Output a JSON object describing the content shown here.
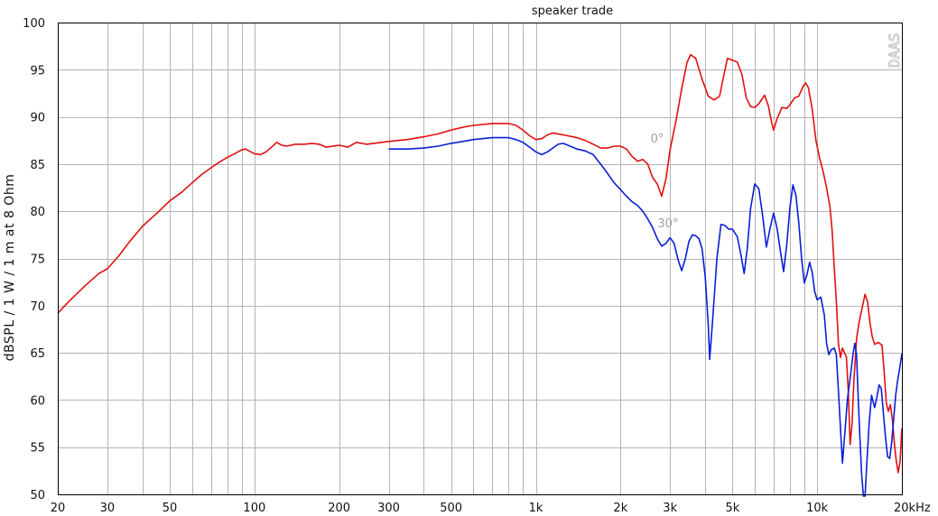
{
  "chart_data": {
    "type": "line",
    "title": "speaker trade",
    "ylabel": "dBSPL / 1 W / 1 m at 8 Ohm",
    "xlabel": "",
    "x_scale": "log",
    "xlim": [
      20,
      20000
    ],
    "ylim": [
      50,
      100
    ],
    "grid": true,
    "x_ticks": [
      {
        "v": 20,
        "label": "20"
      },
      {
        "v": 30,
        "label": "30"
      },
      {
        "v": 50,
        "label": "50"
      },
      {
        "v": 100,
        "label": "100"
      },
      {
        "v": 200,
        "label": "200"
      },
      {
        "v": 300,
        "label": "300"
      },
      {
        "v": 500,
        "label": "500"
      },
      {
        "v": 1000,
        "label": "1k"
      },
      {
        "v": 2000,
        "label": "2k"
      },
      {
        "v": 3000,
        "label": "3k"
      },
      {
        "v": 5000,
        "label": "5k"
      },
      {
        "v": 10000,
        "label": "10k"
      },
      {
        "v": 20000,
        "label": "20kHz"
      }
    ],
    "y_ticks": [
      50,
      55,
      60,
      65,
      70,
      75,
      80,
      85,
      90,
      95,
      100
    ],
    "annotations": [
      {
        "text": "0°",
        "x": 2700,
        "y": 87.3
      },
      {
        "text": "30°",
        "x": 2950,
        "y": 78.3
      }
    ],
    "watermark": "DAAS",
    "series": [
      {
        "name": "0°",
        "color": "#e01010",
        "points": [
          [
            20,
            69.2
          ],
          [
            22,
            70.5
          ],
          [
            25,
            72.1
          ],
          [
            28,
            73.4
          ],
          [
            30,
            73.9
          ],
          [
            33,
            75.3
          ],
          [
            36,
            76.8
          ],
          [
            40,
            78.4
          ],
          [
            45,
            79.8
          ],
          [
            50,
            81.1
          ],
          [
            55,
            82.0
          ],
          [
            60,
            83.0
          ],
          [
            65,
            83.9
          ],
          [
            70,
            84.6
          ],
          [
            75,
            85.2
          ],
          [
            80,
            85.7
          ],
          [
            85,
            86.1
          ],
          [
            90,
            86.5
          ],
          [
            93,
            86.6
          ],
          [
            100,
            86.1
          ],
          [
            105,
            86.0
          ],
          [
            110,
            86.3
          ],
          [
            115,
            86.8
          ],
          [
            120,
            87.3
          ],
          [
            125,
            87.0
          ],
          [
            130,
            86.9
          ],
          [
            140,
            87.1
          ],
          [
            150,
            87.1
          ],
          [
            160,
            87.2
          ],
          [
            170,
            87.1
          ],
          [
            180,
            86.8
          ],
          [
            200,
            87.0
          ],
          [
            215,
            86.8
          ],
          [
            230,
            87.3
          ],
          [
            250,
            87.1
          ],
          [
            300,
            87.4
          ],
          [
            350,
            87.6
          ],
          [
            400,
            87.9
          ],
          [
            450,
            88.2
          ],
          [
            500,
            88.6
          ],
          [
            550,
            88.9
          ],
          [
            600,
            89.1
          ],
          [
            700,
            89.3
          ],
          [
            800,
            89.3
          ],
          [
            850,
            89.1
          ],
          [
            900,
            88.6
          ],
          [
            950,
            88.0
          ],
          [
            1000,
            87.6
          ],
          [
            1050,
            87.7
          ],
          [
            1100,
            88.1
          ],
          [
            1150,
            88.3
          ],
          [
            1200,
            88.2
          ],
          [
            1300,
            88.0
          ],
          [
            1400,
            87.8
          ],
          [
            1500,
            87.5
          ],
          [
            1600,
            87.1
          ],
          [
            1700,
            86.7
          ],
          [
            1800,
            86.7
          ],
          [
            1900,
            86.9
          ],
          [
            2000,
            86.9
          ],
          [
            2100,
            86.6
          ],
          [
            2200,
            85.8
          ],
          [
            2300,
            85.3
          ],
          [
            2400,
            85.5
          ],
          [
            2500,
            85.0
          ],
          [
            2600,
            83.6
          ],
          [
            2700,
            82.9
          ],
          [
            2800,
            81.6
          ],
          [
            2900,
            83.4
          ],
          [
            3000,
            86.5
          ],
          [
            3150,
            89.6
          ],
          [
            3300,
            93.0
          ],
          [
            3450,
            95.8
          ],
          [
            3550,
            96.6
          ],
          [
            3700,
            96.2
          ],
          [
            3900,
            94.0
          ],
          [
            4100,
            92.2
          ],
          [
            4300,
            91.8
          ],
          [
            4500,
            92.2
          ],
          [
            4650,
            94.3
          ],
          [
            4800,
            96.2
          ],
          [
            5000,
            96.0
          ],
          [
            5200,
            95.8
          ],
          [
            5400,
            94.5
          ],
          [
            5600,
            92.0
          ],
          [
            5800,
            91.1
          ],
          [
            6000,
            91.0
          ],
          [
            6200,
            91.4
          ],
          [
            6500,
            92.3
          ],
          [
            6700,
            91.2
          ],
          [
            6900,
            89.3
          ],
          [
            7000,
            88.6
          ],
          [
            7200,
            89.8
          ],
          [
            7500,
            91.0
          ],
          [
            7800,
            90.9
          ],
          [
            8000,
            91.3
          ],
          [
            8300,
            92.0
          ],
          [
            8600,
            92.2
          ],
          [
            8900,
            93.2
          ],
          [
            9100,
            93.6
          ],
          [
            9300,
            93.1
          ],
          [
            9600,
            90.8
          ],
          [
            9900,
            87.5
          ],
          [
            10200,
            85.6
          ],
          [
            10500,
            84.2
          ],
          [
            10800,
            82.5
          ],
          [
            11100,
            80.5
          ],
          [
            11300,
            78.0
          ],
          [
            11500,
            74.0
          ],
          [
            11700,
            70.5
          ],
          [
            11900,
            66.0
          ],
          [
            12100,
            64.5
          ],
          [
            12300,
            65.5
          ],
          [
            12500,
            65.0
          ],
          [
            12700,
            64.6
          ],
          [
            12900,
            61.0
          ],
          [
            13100,
            55.3
          ],
          [
            13300,
            57.5
          ],
          [
            13500,
            62.0
          ],
          [
            13800,
            66.5
          ],
          [
            14100,
            68.3
          ],
          [
            14500,
            70.0
          ],
          [
            14800,
            71.2
          ],
          [
            15100,
            70.4
          ],
          [
            15400,
            68.2
          ],
          [
            15700,
            66.7
          ],
          [
            16000,
            65.9
          ],
          [
            16500,
            66.1
          ],
          [
            17000,
            65.8
          ],
          [
            17300,
            63.0
          ],
          [
            17600,
            59.7
          ],
          [
            17900,
            58.8
          ],
          [
            18200,
            59.5
          ],
          [
            18500,
            58.0
          ],
          [
            18800,
            55.5
          ],
          [
            19100,
            53.5
          ],
          [
            19400,
            52.3
          ],
          [
            19700,
            53.5
          ],
          [
            20000,
            57.0
          ]
        ]
      },
      {
        "name": "30°",
        "color": "#0a1ed8",
        "points": [
          [
            300,
            86.6
          ],
          [
            350,
            86.6
          ],
          [
            400,
            86.7
          ],
          [
            450,
            86.9
          ],
          [
            500,
            87.2
          ],
          [
            550,
            87.4
          ],
          [
            600,
            87.6
          ],
          [
            700,
            87.8
          ],
          [
            800,
            87.8
          ],
          [
            850,
            87.6
          ],
          [
            900,
            87.3
          ],
          [
            950,
            86.8
          ],
          [
            1000,
            86.3
          ],
          [
            1050,
            86.0
          ],
          [
            1100,
            86.3
          ],
          [
            1150,
            86.7
          ],
          [
            1200,
            87.1
          ],
          [
            1250,
            87.2
          ],
          [
            1300,
            87.0
          ],
          [
            1400,
            86.6
          ],
          [
            1500,
            86.4
          ],
          [
            1600,
            86.0
          ],
          [
            1700,
            85.0
          ],
          [
            1800,
            84.0
          ],
          [
            1900,
            83.0
          ],
          [
            2000,
            82.3
          ],
          [
            2100,
            81.6
          ],
          [
            2200,
            81.0
          ],
          [
            2300,
            80.6
          ],
          [
            2400,
            80.0
          ],
          [
            2500,
            79.2
          ],
          [
            2600,
            78.3
          ],
          [
            2700,
            77.1
          ],
          [
            2800,
            76.3
          ],
          [
            2900,
            76.6
          ],
          [
            3000,
            77.2
          ],
          [
            3100,
            76.6
          ],
          [
            3200,
            74.9
          ],
          [
            3300,
            73.7
          ],
          [
            3400,
            75.0
          ],
          [
            3500,
            76.8
          ],
          [
            3600,
            77.5
          ],
          [
            3700,
            77.4
          ],
          [
            3800,
            77.1
          ],
          [
            3900,
            76.0
          ],
          [
            4000,
            73.0
          ],
          [
            4100,
            68.0
          ],
          [
            4150,
            64.3
          ],
          [
            4250,
            68.5
          ],
          [
            4400,
            75.0
          ],
          [
            4550,
            78.6
          ],
          [
            4700,
            78.5
          ],
          [
            4850,
            78.1
          ],
          [
            5000,
            78.1
          ],
          [
            5200,
            77.3
          ],
          [
            5350,
            75.5
          ],
          [
            5500,
            73.4
          ],
          [
            5650,
            76.2
          ],
          [
            5800,
            80.3
          ],
          [
            6000,
            82.9
          ],
          [
            6200,
            82.4
          ],
          [
            6400,
            79.5
          ],
          [
            6600,
            76.2
          ],
          [
            6800,
            78.2
          ],
          [
            7000,
            79.8
          ],
          [
            7200,
            78.2
          ],
          [
            7400,
            75.8
          ],
          [
            7600,
            73.6
          ],
          [
            7800,
            76.5
          ],
          [
            8000,
            80.4
          ],
          [
            8200,
            82.8
          ],
          [
            8400,
            81.7
          ],
          [
            8600,
            78.8
          ],
          [
            8800,
            75.0
          ],
          [
            9000,
            72.4
          ],
          [
            9200,
            73.3
          ],
          [
            9400,
            74.6
          ],
          [
            9600,
            73.5
          ],
          [
            9800,
            71.5
          ],
          [
            10000,
            70.6
          ],
          [
            10300,
            70.9
          ],
          [
            10600,
            69.0
          ],
          [
            10800,
            66.0
          ],
          [
            11000,
            64.8
          ],
          [
            11200,
            65.3
          ],
          [
            11500,
            65.5
          ],
          [
            11700,
            64.8
          ],
          [
            11900,
            61.0
          ],
          [
            12100,
            57.0
          ],
          [
            12300,
            53.3
          ],
          [
            12500,
            56.0
          ],
          [
            12800,
            60.0
          ],
          [
            13100,
            62.3
          ],
          [
            13400,
            64.8
          ],
          [
            13600,
            66.0
          ],
          [
            13800,
            64.8
          ],
          [
            14000,
            60.0
          ],
          [
            14200,
            55.8
          ],
          [
            14400,
            52.0
          ],
          [
            14600,
            49.5
          ],
          [
            14800,
            49.5
          ],
          [
            15000,
            53.2
          ],
          [
            15300,
            57.5
          ],
          [
            15600,
            60.5
          ],
          [
            16000,
            59.2
          ],
          [
            16300,
            60.3
          ],
          [
            16600,
            61.6
          ],
          [
            16900,
            61.2
          ],
          [
            17200,
            58.5
          ],
          [
            17500,
            56.0
          ],
          [
            17800,
            54.0
          ],
          [
            18100,
            53.8
          ],
          [
            18400,
            55.5
          ],
          [
            18700,
            58.0
          ],
          [
            19000,
            60.5
          ],
          [
            19300,
            62.0
          ],
          [
            19600,
            63.2
          ],
          [
            20000,
            64.9
          ]
        ]
      }
    ]
  }
}
